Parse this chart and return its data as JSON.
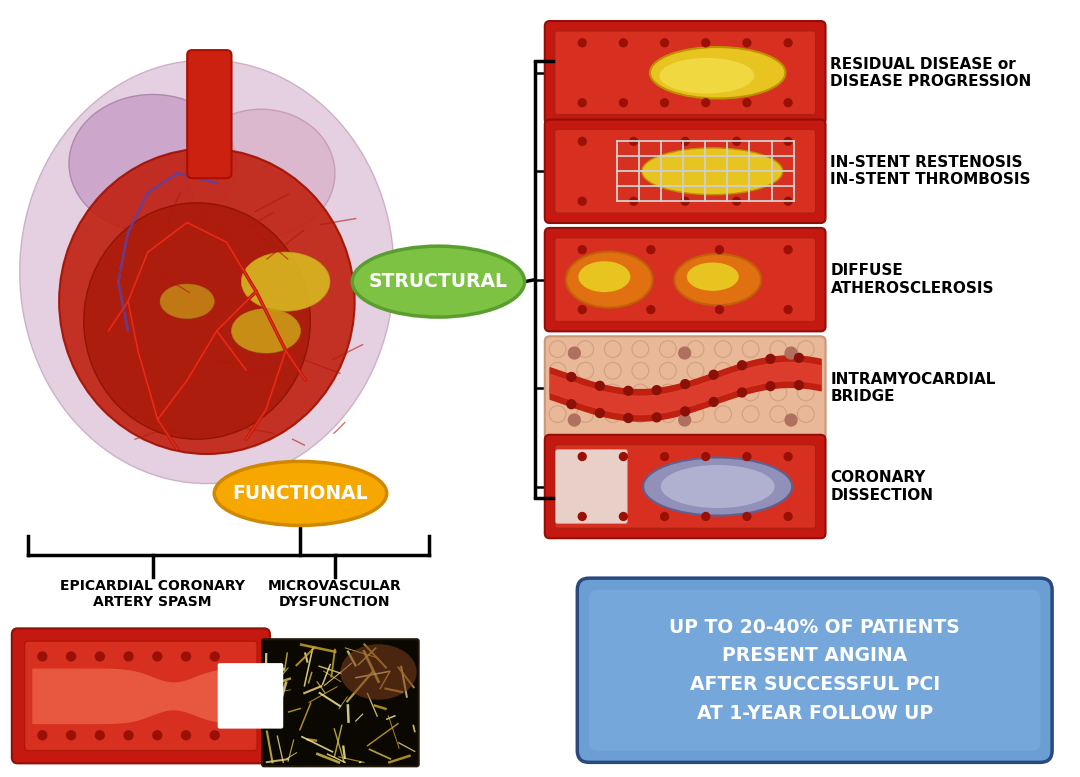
{
  "bg_color": "#ffffff",
  "structural_label": "STRUCTURAL",
  "structural_ellipse_color": "#7dc242",
  "structural_ellipse_edge": "#5a9e2f",
  "functional_label": "FUNCTIONAL",
  "functional_ellipse_color": "#f7a800",
  "functional_ellipse_edge": "#d08800",
  "structural_items": [
    "RESIDUAL DISEASE or\nDISEASE PROGRESSION",
    "IN-STENT RESTENOSIS\nIN-STENT THROMBOSIS",
    "DIFFUSE\nATHEROSCLEROSIS",
    "INTRAMYOCARDIAL\nBRIDGE",
    "CORONARY\nDISSECTION"
  ],
  "functional_items": [
    "EPICARDIAL CORONARY\nARTERY SPASM",
    "MICROVASCULAR\nDYSFUNCTION"
  ],
  "info_box_text": "UP TO 20-40% OF PATIENTS\nPRESENT ANGINA\nAFTER SUCCESSFUL PCI\nAT 1-YEAR FOLLOW UP",
  "info_box_color": "#6b9fd4",
  "info_box_edge": "#2a4a7f",
  "vessel_dark": "#c41e0a",
  "vessel_mid": "#d63010",
  "vessel_light": "#e85840",
  "vessel_inner": "#e06050",
  "plaque_yellow": "#e8c420",
  "plaque_orange": "#e07010",
  "dot_dark": "#9a1005"
}
